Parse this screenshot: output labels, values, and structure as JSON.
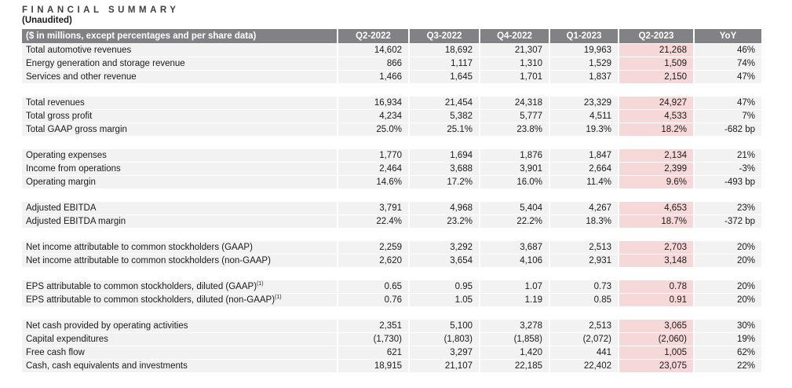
{
  "page": {
    "title": "FINANCIAL SUMMARY",
    "subtitle": "(Unaudited)"
  },
  "table": {
    "header": {
      "label": "($ in millions, except percentages and per share data)",
      "columns": [
        "Q2-2022",
        "Q3-2022",
        "Q4-2022",
        "Q1-2023",
        "Q2-2023",
        "YoY"
      ]
    },
    "highlight_column": "Q2-2023",
    "colors": {
      "header_bg": "#828285",
      "row_bg": "#f2f2f2",
      "highlight_bg": "#f6d8d8",
      "spacer_bg": "#ffffff"
    },
    "rows": [
      {
        "label": "Total automotive revenues",
        "values": [
          "14,602",
          "18,692",
          "21,307",
          "19,963",
          "21,268",
          "46%"
        ]
      },
      {
        "label": "Energy generation and storage revenue",
        "values": [
          "866",
          "1,117",
          "1,310",
          "1,529",
          "1,509",
          "74%"
        ]
      },
      {
        "label": "Services and other revenue",
        "values": [
          "1,466",
          "1,645",
          "1,701",
          "1,837",
          "2,150",
          "47%"
        ]
      },
      {
        "spacer": true
      },
      {
        "label": "Total revenues",
        "values": [
          "16,934",
          "21,454",
          "24,318",
          "23,329",
          "24,927",
          "47%"
        ]
      },
      {
        "label": "Total gross profit",
        "values": [
          "4,234",
          "5,382",
          "5,777",
          "4,511",
          "4,533",
          "7%"
        ]
      },
      {
        "label": "Total GAAP gross margin",
        "values": [
          "25.0%",
          "25.1%",
          "23.8%",
          "19.3%",
          "18.2%",
          "-682 bp"
        ]
      },
      {
        "spacer": true
      },
      {
        "label": "Operating expenses",
        "values": [
          "1,770",
          "1,694",
          "1,876",
          "1,847",
          "2,134",
          "21%"
        ]
      },
      {
        "label": "Income from operations",
        "values": [
          "2,464",
          "3,688",
          "3,901",
          "2,664",
          "2,399",
          "-3%"
        ]
      },
      {
        "label": "Operating margin",
        "values": [
          "14.6%",
          "17.2%",
          "16.0%",
          "11.4%",
          "9.6%",
          "-493 bp"
        ]
      },
      {
        "spacer": true
      },
      {
        "label": "Adjusted EBITDA",
        "values": [
          "3,791",
          "4,968",
          "5,404",
          "4,267",
          "4,653",
          "23%"
        ]
      },
      {
        "label": "Adjusted EBITDA margin",
        "values": [
          "22.4%",
          "23.2%",
          "22.2%",
          "18.3%",
          "18.7%",
          "-372 bp"
        ]
      },
      {
        "spacer": true
      },
      {
        "label": "Net income attributable to common stockholders (GAAP)",
        "values": [
          "2,259",
          "3,292",
          "3,687",
          "2,513",
          "2,703",
          "20%"
        ]
      },
      {
        "label": "Net income attributable to common stockholders (non-GAAP)",
        "values": [
          "2,620",
          "3,654",
          "4,106",
          "2,931",
          "3,148",
          "20%"
        ]
      },
      {
        "spacer": true
      },
      {
        "label": "EPS attributable to common stockholders, diluted (GAAP)",
        "footnote": "(1)",
        "values": [
          "0.65",
          "0.95",
          "1.07",
          "0.73",
          "0.78",
          "20%"
        ]
      },
      {
        "label": "EPS attributable to common stockholders, diluted (non-GAAP)",
        "footnote": "(1)",
        "values": [
          "0.76",
          "1.05",
          "1.19",
          "0.85",
          "0.91",
          "20%"
        ]
      },
      {
        "spacer": true
      },
      {
        "label": "Net cash provided by operating activities",
        "values": [
          "2,351",
          "5,100",
          "3,278",
          "2,513",
          "3,065",
          "30%"
        ]
      },
      {
        "label": "Capital expenditures",
        "values": [
          "(1,730)",
          "(1,803)",
          "(1,858)",
          "(2,072)",
          "(2,060)",
          "19%"
        ]
      },
      {
        "label": "Free cash flow",
        "values": [
          "621",
          "3,297",
          "1,420",
          "441",
          "1,005",
          "62%"
        ]
      },
      {
        "label": "Cash, cash equivalents and investments",
        "values": [
          "18,915",
          "21,107",
          "22,185",
          "22,402",
          "23,075",
          "22%"
        ]
      }
    ]
  }
}
